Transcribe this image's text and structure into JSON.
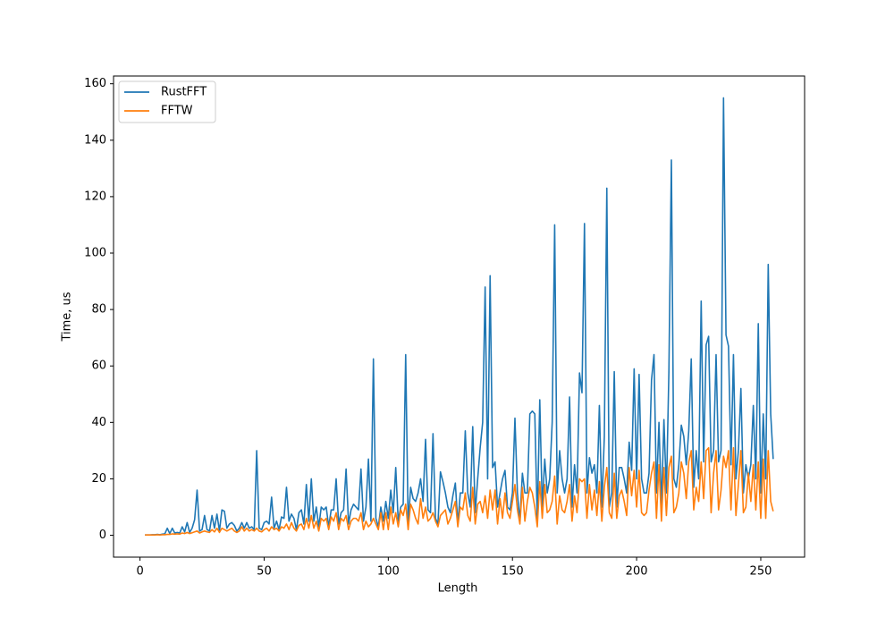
{
  "chart_data": {
    "type": "line",
    "xlabel": "Length",
    "ylabel": "Time, us",
    "xlim": [
      -10.65,
      267.65
    ],
    "ylim": [
      -7.75,
      162.75
    ],
    "xticks": [
      0,
      50,
      100,
      150,
      200,
      250
    ],
    "yticks": [
      0,
      20,
      40,
      60,
      80,
      100,
      120,
      140,
      160
    ],
    "legend": "upper left",
    "grid": false,
    "x": [
      2,
      3,
      4,
      5,
      6,
      7,
      8,
      9,
      10,
      11,
      12,
      13,
      14,
      15,
      16,
      17,
      18,
      19,
      20,
      21,
      22,
      23,
      24,
      25,
      26,
      27,
      28,
      29,
      30,
      31,
      32,
      33,
      34,
      35,
      36,
      37,
      38,
      39,
      40,
      41,
      42,
      43,
      44,
      45,
      46,
      47,
      48,
      49,
      50,
      51,
      52,
      53,
      54,
      55,
      56,
      57,
      58,
      59,
      60,
      61,
      62,
      63,
      64,
      65,
      66,
      67,
      68,
      69,
      70,
      71,
      72,
      73,
      74,
      75,
      76,
      77,
      78,
      79,
      80,
      81,
      82,
      83,
      84,
      85,
      86,
      87,
      88,
      89,
      90,
      91,
      92,
      93,
      94,
      95,
      96,
      97,
      98,
      99,
      100,
      101,
      102,
      103,
      104,
      105,
      106,
      107,
      108,
      109,
      110,
      111,
      112,
      113,
      114,
      115,
      116,
      117,
      118,
      119,
      120,
      121,
      122,
      123,
      124,
      125,
      126,
      127,
      128,
      129,
      130,
      131,
      132,
      133,
      134,
      135,
      136,
      137,
      138,
      139,
      140,
      141,
      142,
      143,
      144,
      145,
      146,
      147,
      148,
      149,
      150,
      151,
      152,
      153,
      154,
      155,
      156,
      157,
      158,
      159,
      160,
      161,
      162,
      163,
      164,
      165,
      166,
      167,
      168,
      169,
      170,
      171,
      172,
      173,
      174,
      175,
      176,
      177,
      178,
      179,
      180,
      181,
      182,
      183,
      184,
      185,
      186,
      187,
      188,
      189,
      190,
      191,
      192,
      193,
      194,
      195,
      196,
      197,
      198,
      199,
      200,
      201,
      202,
      203,
      204,
      205,
      206,
      207,
      208,
      209,
      210,
      211,
      212,
      213,
      214,
      215,
      216,
      217,
      218,
      219,
      220,
      221,
      222,
      223,
      224,
      225,
      226,
      227,
      228,
      229,
      230,
      231,
      232,
      233,
      234,
      235,
      236,
      237,
      238,
      239,
      240,
      241,
      242,
      243,
      244,
      245,
      246,
      247,
      248,
      249,
      250,
      251,
      252,
      253,
      254,
      255
    ],
    "series": [
      {
        "name": "RustFFT",
        "color": "#1f77b4",
        "values": [
          0.1,
          0.1,
          0.1,
          0.2,
          0.2,
          0.3,
          0.2,
          0.4,
          0.5,
          2.5,
          0.6,
          2.5,
          0.8,
          1.0,
          0.8,
          3.0,
          1.2,
          4.5,
          1.0,
          2.5,
          5.5,
          16,
          1.5,
          2.0,
          7,
          2.0,
          1.5,
          7,
          2.5,
          7.5,
          1.5,
          9,
          8.5,
          2.5,
          4,
          4.5,
          3.5,
          1.5,
          2.5,
          4.5,
          2.5,
          4.5,
          2.5,
          3,
          2,
          30,
          2.5,
          2,
          4.5,
          5,
          4,
          13.5,
          2.5,
          5,
          2,
          6.5,
          6,
          17,
          5,
          7.5,
          6,
          2,
          8,
          9,
          4,
          18,
          5,
          20,
          5,
          10,
          3,
          10,
          9,
          10,
          3,
          9,
          9,
          20,
          4,
          8,
          9,
          23.5,
          4,
          9,
          11,
          10,
          9,
          23.5,
          5,
          10,
          27,
          5,
          62.5,
          6,
          3,
          10,
          5,
          12,
          6,
          16,
          8,
          24,
          5,
          10,
          11,
          64,
          4,
          17,
          13,
          12,
          15,
          20,
          12,
          34,
          9,
          8,
          36,
          6,
          4,
          22.5,
          19,
          15,
          10,
          8,
          14,
          18.5,
          4,
          15,
          15,
          37,
          15,
          10,
          38.5,
          8,
          20,
          31,
          40,
          88,
          20,
          92,
          24,
          26,
          10,
          15,
          20,
          23,
          10,
          9,
          15,
          41.5,
          15,
          5,
          22,
          15,
          15,
          43,
          44,
          43,
          5,
          48,
          10,
          27,
          15,
          20,
          40,
          110,
          15,
          30,
          20,
          15,
          20,
          49,
          10,
          25,
          15,
          57.5,
          50.5,
          110.5,
          15,
          27.5,
          22,
          25,
          15,
          46,
          10,
          35,
          123,
          10,
          15,
          58,
          10,
          24,
          24,
          20,
          15,
          33,
          23,
          59,
          20,
          57,
          20,
          15,
          15,
          22,
          55,
          64,
          15,
          40,
          10,
          41,
          15,
          58,
          133,
          20,
          17,
          25,
          39,
          35,
          25,
          37,
          62.5,
          17,
          30,
          20,
          83,
          26,
          67.5,
          70.5,
          26,
          30,
          64,
          26,
          30,
          155,
          71,
          67,
          25,
          64,
          20,
          30,
          52,
          15,
          25,
          20,
          25,
          46,
          20,
          75,
          15,
          43,
          20,
          96,
          43,
          27
        ]
      },
      {
        "name": "FFTW",
        "color": "#ff7f0e",
        "values": [
          0.1,
          0.1,
          0.1,
          0.1,
          0.1,
          0.2,
          0.1,
          0.2,
          0.2,
          0.3,
          0.3,
          0.5,
          0.4,
          0.5,
          0.4,
          0.8,
          0.6,
          1.0,
          0.6,
          0.9,
          1.2,
          1.5,
          0.8,
          1.2,
          1.5,
          1.2,
          1.0,
          2.0,
          1.2,
          2.5,
          1.0,
          2.5,
          2.0,
          1.5,
          2.0,
          2.5,
          1.5,
          1.0,
          1.5,
          3.0,
          1.5,
          2.5,
          1.5,
          2,
          1.5,
          2.5,
          1.5,
          1.2,
          2,
          2.5,
          1.5,
          3,
          2,
          2.5,
          1.5,
          3,
          2.5,
          4,
          2,
          4.5,
          2.5,
          1.5,
          3.5,
          4,
          2,
          6,
          2.5,
          7,
          2.5,
          5,
          1.5,
          6,
          5,
          6,
          2,
          6.5,
          5,
          8,
          2,
          6,
          5,
          7,
          2,
          5,
          6,
          6,
          5,
          8,
          2,
          5,
          3,
          4,
          6,
          4,
          2,
          8,
          2,
          8,
          2,
          10,
          4,
          8,
          3,
          9,
          7,
          11,
          2,
          11,
          9,
          6,
          4,
          13,
          6,
          10,
          5,
          6,
          8,
          5,
          3,
          7,
          8,
          9,
          4,
          6,
          9,
          12,
          3,
          10,
          9,
          15,
          7,
          5,
          17,
          4,
          11,
          12,
          8,
          14,
          6,
          16,
          9,
          16,
          4,
          13,
          6,
          15,
          8,
          6,
          12,
          18,
          9,
          4,
          17,
          5,
          12,
          17,
          15,
          10,
          3,
          19,
          6,
          18,
          8,
          9,
          12,
          21,
          4,
          14,
          9,
          8,
          12,
          18,
          5,
          14,
          8,
          20,
          19,
          20,
          6,
          18,
          9,
          16,
          7,
          19,
          5,
          17,
          24,
          8,
          6,
          22,
          6,
          14,
          16,
          12,
          7,
          24,
          14,
          23,
          10,
          23,
          8,
          7,
          8,
          16,
          22,
          26,
          6,
          25,
          5,
          24,
          7,
          24,
          28,
          8,
          10,
          15,
          26,
          22,
          13,
          26,
          30,
          9,
          17,
          12,
          26,
          13,
          30,
          31,
          8,
          22,
          30,
          9,
          16,
          28,
          24,
          30,
          9,
          31,
          7,
          18,
          30,
          8,
          10,
          22,
          12,
          25,
          9,
          26,
          6,
          27,
          6,
          30,
          12,
          8.5
        ]
      }
    ]
  }
}
